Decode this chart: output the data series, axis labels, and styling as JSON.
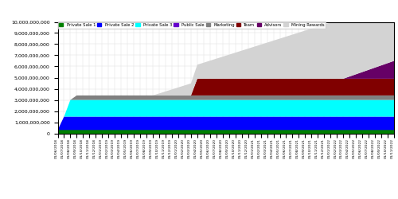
{
  "title": "",
  "categories": [
    "Private Sale 1",
    "Private Sale 2",
    "Private Sale 3",
    "Public Sale",
    "Marketing",
    "Team",
    "Advisors",
    "Mining Rewards"
  ],
  "colors": [
    "#008000",
    "#0000ff",
    "#00ffff",
    "#6600cc",
    "#808080",
    "#800000",
    "#660066",
    "#d3d3d3"
  ],
  "start_date": "2018-06-01",
  "num_periods": 54,
  "ylim": [
    0,
    10000000000
  ],
  "yticks": [
    0,
    1000000000,
    2000000000,
    3000000000,
    4000000000,
    5000000000,
    6000000000,
    7000000000,
    8000000000,
    9000000000,
    10000000000
  ],
  "figsize": [
    5.0,
    2.5
  ],
  "dpi": 100,
  "alloc": {
    "Private Sale 1": [
      300000000,
      300000000,
      300000000,
      300000000,
      300000000,
      300000000,
      300000000,
      300000000,
      300000000,
      300000000,
      300000000,
      300000000,
      300000000,
      300000000,
      300000000,
      300000000,
      300000000,
      300000000,
      300000000,
      300000000,
      300000000,
      300000000,
      300000000,
      300000000,
      300000000,
      300000000,
      300000000,
      300000000,
      300000000,
      300000000,
      300000000,
      300000000,
      300000000,
      300000000,
      300000000,
      300000000,
      300000000,
      300000000,
      300000000,
      300000000,
      300000000,
      300000000,
      300000000,
      300000000,
      300000000,
      300000000,
      300000000,
      300000000,
      300000000,
      300000000,
      300000000,
      300000000,
      300000000,
      300000000
    ],
    "Private Sale 2": [
      0,
      1200000000,
      1200000000,
      1200000000,
      1200000000,
      1200000000,
      1200000000,
      1200000000,
      1200000000,
      1200000000,
      1200000000,
      1200000000,
      1200000000,
      1200000000,
      1200000000,
      1200000000,
      1200000000,
      1200000000,
      1200000000,
      1200000000,
      1200000000,
      1200000000,
      1200000000,
      1200000000,
      1200000000,
      1200000000,
      1200000000,
      1200000000,
      1200000000,
      1200000000,
      1200000000,
      1200000000,
      1200000000,
      1200000000,
      1200000000,
      1200000000,
      1200000000,
      1200000000,
      1200000000,
      1200000000,
      1200000000,
      1200000000,
      1200000000,
      1200000000,
      1200000000,
      1200000000,
      1200000000,
      1200000000,
      1200000000,
      1200000000,
      1200000000,
      1200000000,
      1200000000,
      1200000000
    ],
    "Private Sale 3": [
      0,
      0,
      1500000000,
      1500000000,
      1500000000,
      1500000000,
      1500000000,
      1500000000,
      1500000000,
      1500000000,
      1500000000,
      1500000000,
      1500000000,
      1500000000,
      1500000000,
      1500000000,
      1500000000,
      1500000000,
      1500000000,
      1500000000,
      1500000000,
      1500000000,
      1500000000,
      1500000000,
      1500000000,
      1500000000,
      1500000000,
      1500000000,
      1500000000,
      1500000000,
      1500000000,
      1500000000,
      1500000000,
      1500000000,
      1500000000,
      1500000000,
      1500000000,
      1500000000,
      1500000000,
      1500000000,
      1500000000,
      1500000000,
      1500000000,
      1500000000,
      1500000000,
      1500000000,
      1500000000,
      1500000000,
      1500000000,
      1500000000,
      1500000000,
      1500000000,
      1500000000,
      1500000000
    ],
    "Public Sale": [
      0,
      0,
      0,
      0,
      0,
      0,
      0,
      0,
      0,
      0,
      0,
      0,
      0,
      0,
      0,
      0,
      0,
      0,
      0,
      0,
      0,
      0,
      0,
      0,
      0,
      0,
      0,
      0,
      0,
      0,
      0,
      0,
      0,
      0,
      0,
      0,
      0,
      0,
      0,
      0,
      0,
      0,
      0,
      0,
      0,
      0,
      0,
      0,
      0,
      0,
      0,
      0,
      0,
      0
    ],
    "Marketing": [
      0,
      0,
      0,
      400000000,
      400000000,
      400000000,
      400000000,
      400000000,
      400000000,
      400000000,
      400000000,
      400000000,
      400000000,
      400000000,
      400000000,
      400000000,
      400000000,
      400000000,
      400000000,
      400000000,
      400000000,
      400000000,
      400000000,
      400000000,
      400000000,
      400000000,
      400000000,
      400000000,
      400000000,
      400000000,
      400000000,
      400000000,
      400000000,
      400000000,
      400000000,
      400000000,
      400000000,
      400000000,
      400000000,
      400000000,
      400000000,
      400000000,
      400000000,
      400000000,
      400000000,
      400000000,
      400000000,
      400000000,
      400000000,
      400000000,
      400000000,
      400000000,
      400000000,
      400000000
    ],
    "Team": [
      0,
      0,
      0,
      0,
      0,
      0,
      0,
      0,
      0,
      0,
      0,
      0,
      0,
      0,
      0,
      0,
      0,
      0,
      0,
      0,
      0,
      0,
      1500000000,
      1500000000,
      1500000000,
      1500000000,
      1500000000,
      1500000000,
      1500000000,
      1500000000,
      1500000000,
      1500000000,
      1500000000,
      1500000000,
      1500000000,
      1500000000,
      1500000000,
      1500000000,
      1500000000,
      1500000000,
      1500000000,
      1500000000,
      1500000000,
      1500000000,
      1500000000,
      1500000000,
      1500000000,
      1500000000,
      1500000000,
      1500000000,
      1500000000,
      1500000000,
      1500000000,
      1500000000
    ],
    "Advisors": [
      0,
      0,
      0,
      0,
      0,
      0,
      0,
      0,
      0,
      0,
      0,
      0,
      0,
      0,
      0,
      0,
      0,
      0,
      0,
      0,
      0,
      0,
      0,
      0,
      0,
      0,
      0,
      0,
      0,
      0,
      0,
      0,
      0,
      0,
      0,
      0,
      0,
      0,
      0,
      0,
      0,
      0,
      0,
      0,
      0,
      0,
      200000000,
      400000000,
      600000000,
      800000000,
      1000000000,
      1200000000,
      1400000000,
      1600000000
    ],
    "Mining Rewards": [
      0,
      0,
      0,
      0,
      0,
      0,
      0,
      0,
      0,
      0,
      0,
      0,
      0,
      0,
      0,
      0,
      180000000,
      360000000,
      540000000,
      720000000,
      900000000,
      1080000000,
      1260000000,
      1440000000,
      1620000000,
      1800000000,
      1980000000,
      2160000000,
      2340000000,
      2520000000,
      2700000000,
      2880000000,
      3060000000,
      3240000000,
      3420000000,
      3600000000,
      3780000000,
      3960000000,
      4140000000,
      4320000000,
      4500000000,
      4680000000,
      4860000000,
      5040000000,
      5220000000,
      5400000000,
      5580000000,
      5760000000,
      5940000000,
      6120000000,
      6300000000,
      6480000000,
      6660000000,
      6840000000
    ]
  }
}
